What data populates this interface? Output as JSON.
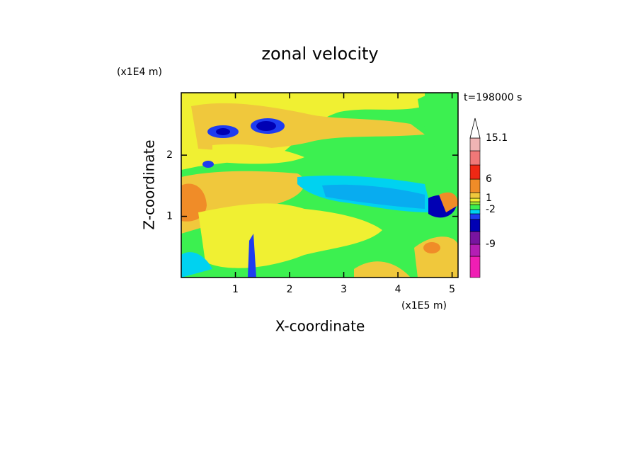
{
  "chart_data": {
    "type": "contour",
    "title": "zonal velocity",
    "x_label": "X-coordinate",
    "y_label": "Z-coordinate",
    "x_unit": "(x1E5 m)",
    "y_unit": "(x1E4 m)",
    "time_label": "t=198000 s",
    "xlim": [
      0,
      5.11
    ],
    "xticks": [
      1,
      2,
      3,
      4,
      5
    ],
    "ylim": [
      0,
      3.02
    ],
    "yticks": [
      1,
      2
    ],
    "colorbar": {
      "colors": [
        "#f01eb4",
        "#b41eb4",
        "#7814a0",
        "#0000b4",
        "#1e3cf0",
        "#00d2f0",
        "#3cf050",
        "#a0e632",
        "#f0f032",
        "#f0c83c",
        "#f08c28",
        "#f02814",
        "#f07878",
        "#f0b4b4"
      ],
      "levels": [
        null,
        null,
        -9,
        null,
        null,
        null,
        -2,
        null,
        null,
        1,
        null,
        6,
        null,
        null,
        15.1
      ]
    }
  }
}
